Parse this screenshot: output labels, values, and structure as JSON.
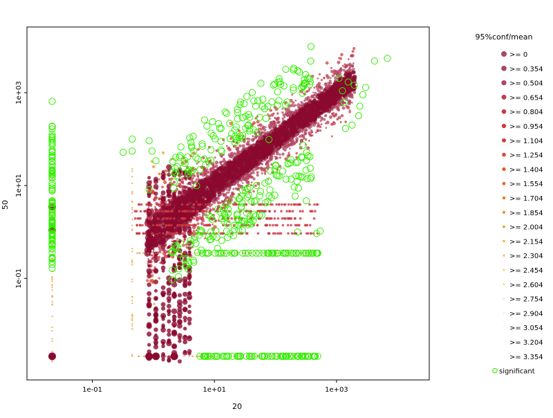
{
  "chart_data": {
    "type": "scatter",
    "title": "",
    "xlabel": "20",
    "ylabel": "50",
    "x_scale": "log10",
    "y_scale": "log10",
    "xlim": [
      0.0085,
      33000
    ],
    "ylim": [
      0.00065,
      26000
    ],
    "x_ticks": [
      {
        "value": 0.1,
        "label": "1e-01"
      },
      {
        "value": 10,
        "label": "1e+01"
      },
      {
        "value": 1000,
        "label": "1e+03"
      }
    ],
    "y_ticks": [
      {
        "value": 0.1,
        "label": "1e-01"
      },
      {
        "value": 10,
        "label": "1e+01"
      },
      {
        "value": 1000,
        "label": "1e+03"
      }
    ],
    "grid": false,
    "legend_placement": "right",
    "legend": {
      "title": "95%conf/mean",
      "items": [
        {
          "label": ">= 0",
          "color": "#a44a68"
        },
        {
          "label": ">= 0.354",
          "color": "#a4485f"
        },
        {
          "label": ">= 0.504",
          "color": "#b04561"
        },
        {
          "label": ">= 0.654",
          "color": "#b7405a"
        },
        {
          "label": ">= 0.804",
          "color": "#c23b4e"
        },
        {
          "label": ">= 0.954",
          "color": "#cc3a42"
        },
        {
          "label": ">= 1.104",
          "color": "#d13d3b"
        },
        {
          "label": ">= 1.254",
          "color": "#d84a36"
        },
        {
          "label": ">= 1.404",
          "color": "#df5a31"
        },
        {
          "label": ">= 1.554",
          "color": "#e36c30"
        },
        {
          "label": ">= 1.704",
          "color": "#e68030"
        },
        {
          "label": ">= 1.854",
          "color": "#ea9233"
        },
        {
          "label": ">= 2.004",
          "color": "#eda43a"
        },
        {
          "label": ">= 2.154",
          "color": "#efb544"
        },
        {
          "label": ">= 2.304",
          "color": "#f1c350"
        },
        {
          "label": ">= 2.454",
          "color": "#f2cf5d"
        },
        {
          "label": ">= 2.604",
          "color": "#f3d96b"
        },
        {
          "label": ">= 2.754",
          "color": "#f4e17a"
        },
        {
          "label": ">= 2.904",
          "color": "#f5e88a"
        },
        {
          "label": ">= 3.054",
          "color": "#f6ed9a"
        },
        {
          "label": ">= 3.204",
          "color": "#f7f1aa"
        },
        {
          "label": ">= 3.354",
          "color": "#f8f4ba"
        },
        {
          "label": "significant",
          "color": "#33ee00",
          "open": true
        }
      ]
    },
    "colors": {
      "core": "#8b0a2f",
      "significant": "#33ee00"
    },
    "series": [
      {
        "name": "significant",
        "points": [
          [
            6800,
            5500
          ],
          [
            4200,
            4800
          ],
          [
            1100,
            2050
          ],
          [
            1550,
            1700
          ],
          [
            1950,
            1450
          ],
          [
            3000,
            1300
          ],
          [
            1250,
            1100
          ],
          [
            2700,
            900
          ],
          [
            1350,
            620
          ],
          [
            2400,
            510
          ],
          [
            2300,
            320
          ],
          [
            1800,
            200
          ],
          [
            1400,
            170
          ],
          [
            6.9,
            260
          ],
          [
            4.5,
            115
          ],
          [
            38,
            165
          ],
          [
            78,
            98
          ],
          [
            50,
            140
          ],
          [
            0.022,
            650
          ],
          [
            0.022,
            190
          ],
          [
            0.022,
            125
          ],
          [
            0.022,
            20
          ],
          [
            0.022,
            3.5
          ],
          [
            0.022,
            1.1
          ],
          [
            0.45,
            100
          ],
          [
            0.45,
            55
          ],
          [
            0.85,
            92
          ],
          [
            0.85,
            8.2
          ],
          [
            0.32,
            52
          ],
          [
            0.95,
            55
          ],
          [
            1.1,
            34
          ],
          [
            3.3,
            30
          ],
          [
            5.8,
            22
          ],
          [
            5.1,
            9.9
          ],
          [
            330,
            14
          ],
          [
            320,
            4.7
          ],
          [
            540,
            1.05
          ],
          [
            470,
            0.93
          ],
          [
            25,
            1.1
          ],
          [
            8,
            2.3
          ],
          [
            20,
            4.8
          ],
          [
            8.8,
            2.1
          ],
          [
            18,
            0.92
          ],
          [
            210,
            5.9
          ],
          [
            230,
            1.0
          ],
          [
            320,
            0.35
          ],
          [
            6.3,
            0.35
          ],
          [
            160,
            0.35
          ],
          [
            480,
            0.35
          ],
          [
            490,
            0.0021
          ],
          [
            60,
            0.0021
          ],
          [
            25,
            0.0021
          ],
          [
            5.8,
            0.0021
          ],
          [
            10,
            0.0021
          ],
          [
            180,
            0.0021
          ],
          [
            100,
            0.0021
          ]
        ]
      }
    ]
  }
}
